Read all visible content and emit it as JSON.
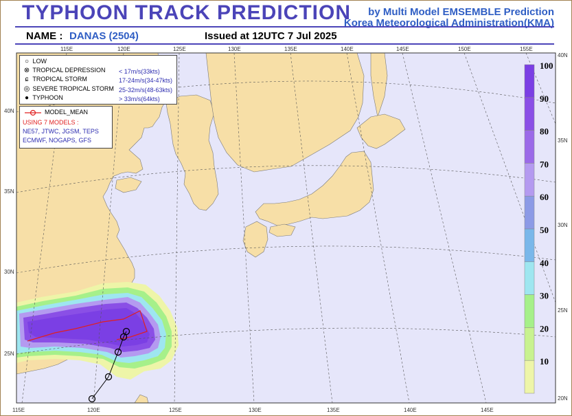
{
  "header": {
    "title": "TYPHOON  TRACK  PREDICTION",
    "byline_1": "by Multi Model EMSEMBLE Prediction",
    "byline_2": "Korea Meteorological Administration(KMA)",
    "name_label": "NAME :",
    "name_value": "DANAS (2504)",
    "issued": "Issued at  12UTC  7 Jul 2025"
  },
  "legend": {
    "rows": [
      {
        "icon": "low-icon",
        "symbol": "○",
        "name": "LOW",
        "speed": ""
      },
      {
        "icon": "tropical-depression-icon",
        "symbol": "⊗",
        "name": "TROPICAL DEPRESSION",
        "speed": "< 17m/s(33kts)"
      },
      {
        "icon": "tropical-storm-icon",
        "symbol": "ɕ",
        "name": "TROPICAL STORM",
        "speed": "17-24m/s(34-47kts)"
      },
      {
        "icon": "severe-tropical-storm-icon",
        "symbol": "◎",
        "name": "SEVERE TROPICAL STORM",
        "speed": "25-32m/s(48-63kts)"
      },
      {
        "icon": "typhoon-icon",
        "symbol": "●",
        "name": "TYPHOON",
        "speed": "> 33m/s(64kts)"
      }
    ]
  },
  "models": {
    "mean_label": "MODEL_MEAN",
    "using": "USING 7 MODELS :",
    "list_1": "NE57, JTWC, JGSM, TEPS",
    "list_2": "ECMWF, NOGAPS, GFS"
  },
  "axes": {
    "top_lon": [
      "115E",
      "120E",
      "125E",
      "130E",
      "135E",
      "140E",
      "145E",
      "150E",
      "155E"
    ],
    "bottom_lon": [
      "115E",
      "120E",
      "125E",
      "130E",
      "135E",
      "140E",
      "145E"
    ],
    "left_lat": [
      "40N",
      "35N",
      "30N",
      "25N"
    ],
    "right_lat": [
      "40N",
      "35N",
      "30N",
      "25N",
      "20N"
    ]
  },
  "colorbar": {
    "labels": [
      "100",
      "90",
      "80",
      "70",
      "60",
      "50",
      "40",
      "30",
      "20",
      "10"
    ],
    "colors": [
      "#7b3fe4",
      "#8a4fe6",
      "#9b6ae8",
      "#b49af0",
      "#8c9ae6",
      "#79b7ea",
      "#9ee6f0",
      "#a6f08a",
      "#c8f290",
      "#eef5a8"
    ]
  },
  "colors": {
    "land": "#f7dfa7",
    "sea": "#e6e6fa",
    "track": "#e02020"
  }
}
